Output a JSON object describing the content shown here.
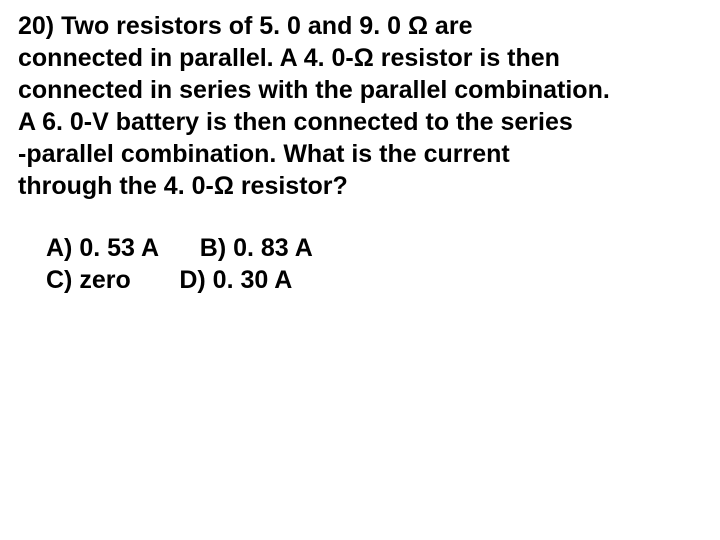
{
  "question": {
    "line1": "20) Two resistors of 5. 0 and 9. 0 Ω are",
    "line2": "connected in parallel.  A 4. 0-Ω resistor is then",
    "line3": "connected in series with the parallel combination.",
    "line4": "A 6. 0-V battery is then connected to the series",
    "line5": "-parallel combination.  What is the current",
    "line6": "through the 4. 0-Ω resistor?"
  },
  "answers": {
    "a": "A) 0. 53 A",
    "gap1": "      ",
    "b": "B) 0. 83 A",
    "c": "C) zero",
    "gap2": "       ",
    "d": "D) 0. 30 A"
  },
  "colors": {
    "background": "#ffffff",
    "text": "#000000"
  },
  "typography": {
    "font_family": "Comic Sans MS",
    "font_size_pt": 19,
    "font_weight": "bold"
  }
}
